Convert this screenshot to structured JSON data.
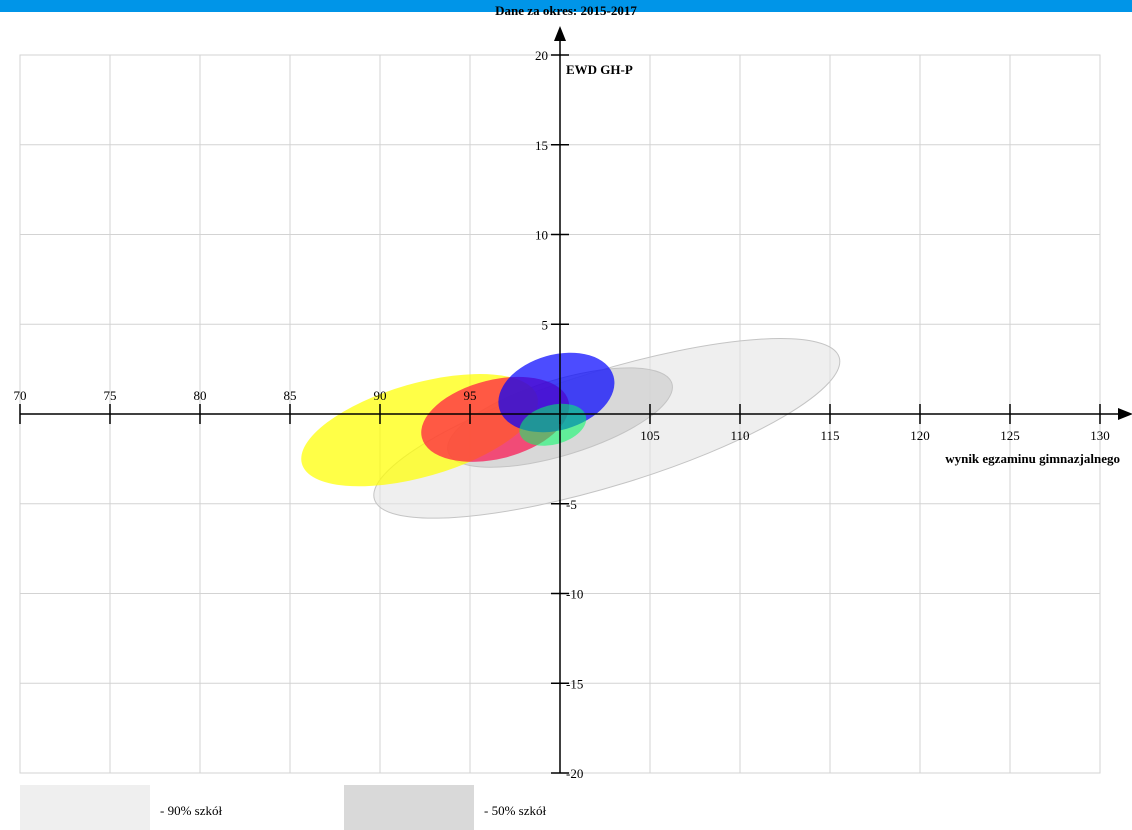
{
  "chart_data": {
    "type": "scatter",
    "title": "Dane za okres: 2015-2017",
    "xlabel": "wynik egzaminu gimnazjalnego",
    "ylabel": "EWD GH-P",
    "xlim": [
      70,
      130
    ],
    "ylim": [
      -20,
      20
    ],
    "x_ticks": [
      70,
      75,
      80,
      85,
      90,
      95,
      100,
      105,
      110,
      115,
      120,
      125,
      130
    ],
    "x_tick_labels": [
      "70",
      "75",
      "80",
      "85",
      "90",
      "95",
      "",
      "105",
      "110",
      "115",
      "120",
      "125",
      "130"
    ],
    "y_ticks": [
      -20,
      -15,
      -10,
      -5,
      5,
      10,
      15,
      20
    ],
    "y_tick_labels": [
      "-20",
      "-15",
      "-10",
      "-5",
      "5",
      "10",
      "15",
      "20"
    ],
    "grid": true,
    "ellipses": [
      {
        "role": "90% szkół",
        "cx": 102.6,
        "cy": -0.8,
        "rx": 13.5,
        "ry": 3.2,
        "rotation_deg": -17,
        "color": "#e4e4e4",
        "opacity": 0.6
      },
      {
        "role": "50% szkół",
        "cx": 100.0,
        "cy": -0.2,
        "rx": 6.5,
        "ry": 2.1,
        "rotation_deg": -17,
        "color": "#cfcfcf",
        "opacity": 0.7
      },
      {
        "cx": 92.2,
        "cy": -0.9,
        "rx": 6.8,
        "ry": 2.6,
        "rotation_deg": -16,
        "color": "#ffff00",
        "opacity": 0.72
      },
      {
        "cx": 96.4,
        "cy": -0.3,
        "rx": 4.2,
        "ry": 2.2,
        "rotation_deg": -14,
        "color": "#ff0044",
        "opacity": 0.65
      },
      {
        "cx": 99.8,
        "cy": 1.2,
        "rx": 3.3,
        "ry": 2.1,
        "rotation_deg": -16,
        "color": "#0000ff",
        "opacity": 0.7
      },
      {
        "cx": 99.6,
        "cy": -0.6,
        "rx": 1.9,
        "ry": 1.1,
        "rotation_deg": -15,
        "color": "#00ff66",
        "opacity": 0.55
      }
    ]
  },
  "legend": {
    "items": [
      {
        "label": "- 90% szkół",
        "color": "#efefef"
      },
      {
        "label": "- 50% szkół",
        "color": "#d9d9d9"
      }
    ]
  },
  "colors": {
    "top_bar": "#0095e8",
    "grid": "#d3d3d3",
    "axis": "#000000"
  }
}
